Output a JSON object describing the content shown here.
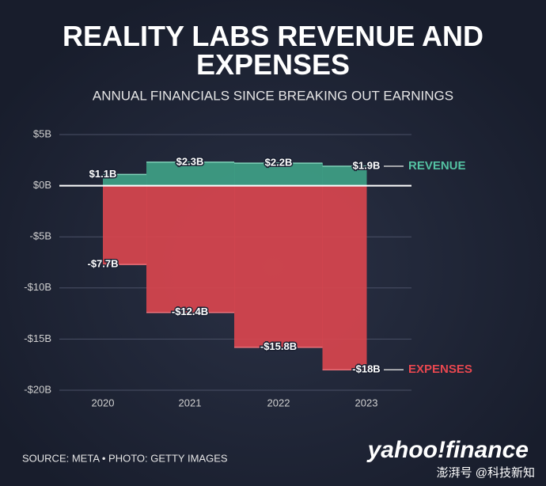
{
  "chart_data": {
    "type": "step-area",
    "title": "REALITY LABS REVENUE AND EXPENSES",
    "subtitle": "ANNUAL FINANCIALS SINCE BREAKING OUT EARNINGS",
    "categories": [
      "2020",
      "2021",
      "2022",
      "2023"
    ],
    "series": [
      {
        "name": "REVENUE",
        "color": "#3f9f86",
        "values": [
          1.1,
          2.3,
          2.2,
          1.9
        ],
        "value_labels": [
          "$1.1B",
          "$2.3B",
          "$2.2B",
          "$1.9B"
        ]
      },
      {
        "name": "EXPENSES",
        "color": "#d8454e",
        "values": [
          -7.7,
          -12.4,
          -15.8,
          -18
        ],
        "value_labels": [
          "-$7.7B",
          "-$12.4B",
          "-$15.8B",
          "-$18B"
        ]
      }
    ],
    "ylim": [
      -20,
      5
    ],
    "yticks": [
      {
        "value": 5,
        "label": "$5B"
      },
      {
        "value": 0,
        "label": "$0B"
      },
      {
        "value": -5,
        "label": "-$5B"
      },
      {
        "value": -10,
        "label": "-$10B"
      },
      {
        "value": -15,
        "label": "-$15B"
      },
      {
        "value": -20,
        "label": "-$20B"
      }
    ],
    "grid": true,
    "source": "SOURCE: META • PHOTO: GETTY IMAGES",
    "brand": "yahoo!finance",
    "watermark": "澎湃号 @科技新知"
  }
}
